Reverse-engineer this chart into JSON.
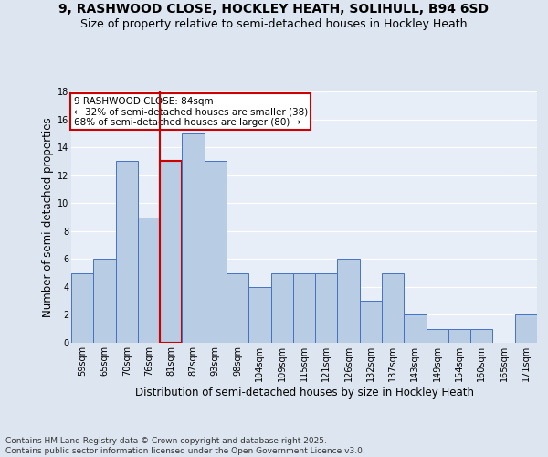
{
  "title_line1": "9, RASHWOOD CLOSE, HOCKLEY HEATH, SOLIHULL, B94 6SD",
  "title_line2": "Size of property relative to semi-detached houses in Hockley Heath",
  "xlabel": "Distribution of semi-detached houses by size in Hockley Heath",
  "ylabel": "Number of semi-detached properties",
  "categories": [
    "59sqm",
    "65sqm",
    "70sqm",
    "76sqm",
    "81sqm",
    "87sqm",
    "93sqm",
    "98sqm",
    "104sqm",
    "109sqm",
    "115sqm",
    "121sqm",
    "126sqm",
    "132sqm",
    "137sqm",
    "143sqm",
    "149sqm",
    "154sqm",
    "160sqm",
    "165sqm",
    "171sqm"
  ],
  "values": [
    5,
    6,
    13,
    9,
    13,
    15,
    13,
    5,
    4,
    5,
    5,
    5,
    6,
    3,
    5,
    2,
    1,
    1,
    1,
    0,
    2
  ],
  "bar_color": "#b8cce4",
  "bar_edge_color": "#4472c4",
  "highlight_bar_index": 4,
  "highlight_edge_color": "#cc0000",
  "annotation_title": "9 RASHWOOD CLOSE: 84sqm",
  "annotation_line1": "← 32% of semi-detached houses are smaller (38)",
  "annotation_line2": "68% of semi-detached houses are larger (80) →",
  "annotation_box_color": "#ffffff",
  "annotation_box_edge": "#cc0000",
  "ylim": [
    0,
    18
  ],
  "yticks": [
    0,
    2,
    4,
    6,
    8,
    10,
    12,
    14,
    16,
    18
  ],
  "footer_line1": "Contains HM Land Registry data © Crown copyright and database right 2025.",
  "footer_line2": "Contains public sector information licensed under the Open Government Licence v3.0.",
  "bg_color": "#dde6f0",
  "plot_bg_color": "#e8eef7",
  "grid_color": "#ffffff",
  "title_fontsize": 10,
  "subtitle_fontsize": 9,
  "axis_label_fontsize": 8.5,
  "tick_fontsize": 7,
  "footer_fontsize": 6.5,
  "annotation_fontsize": 7.5
}
